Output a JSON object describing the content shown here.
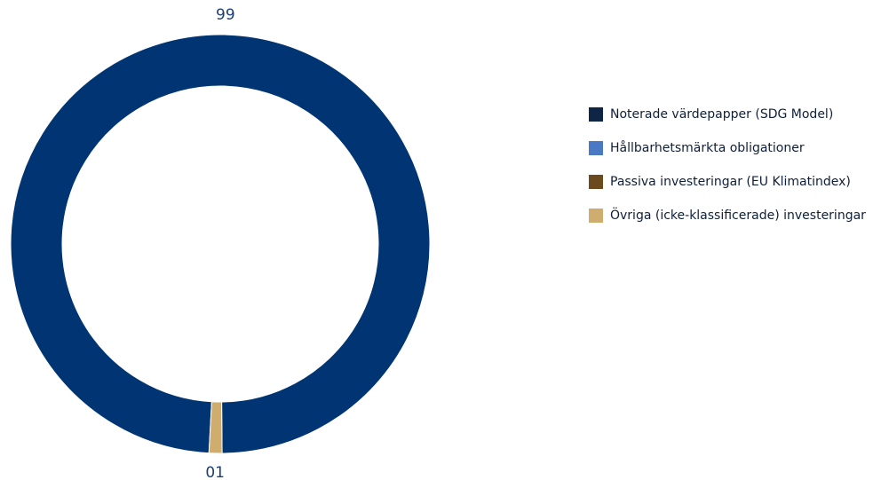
{
  "chart_data": {
    "type": "pie",
    "style": "donut",
    "title": "",
    "categories": [
      "Noterade värdepapper (SDG Model)",
      "Hållbarhetsmärkta obligationer",
      "Passiva investeringar (EU Klimatindex)",
      "Övriga (icke-klassificerade) investeringar"
    ],
    "values": [
      99,
      0,
      0,
      1
    ],
    "data_labels": [
      "99",
      "",
      "",
      "01"
    ],
    "colors": [
      "#003473",
      "#4a78c4",
      "#6b4a1f",
      "#cfad6e"
    ],
    "legend_swatch_colors": [
      "#0f2545",
      "#4a78c4",
      "#6b4a1f",
      "#cfad6e"
    ],
    "legend_position": "right"
  }
}
